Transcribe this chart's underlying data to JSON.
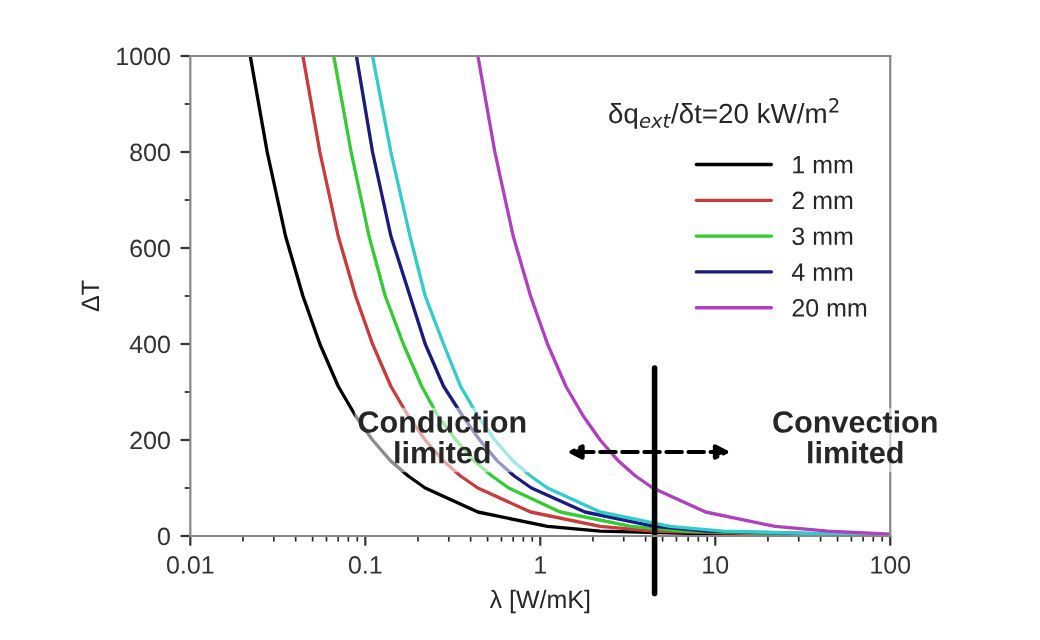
{
  "chart_data": {
    "type": "line",
    "xlabel": "λ [W/mK]",
    "ylabel": "ΔT",
    "log": "x",
    "xlim": [
      0.01,
      100
    ],
    "xticks": [
      0.01,
      0.1,
      1,
      10,
      100
    ],
    "ylim": [
      0,
      1000
    ],
    "yticks": [
      0,
      200,
      400,
      600,
      800,
      1000
    ],
    "grid": false,
    "legend": "right",
    "marker": "none",
    "line_style": "solid",
    "series": [
      {
        "name": "1 mm",
        "color": "#000000",
        "x": [
          0.022,
          0.0275,
          0.035,
          0.044,
          0.055,
          0.07,
          0.088,
          0.11,
          0.14,
          0.176,
          0.22,
          0.44,
          1.1,
          2.2,
          22,
          100
        ],
        "values": [
          1000,
          800,
          625,
          500,
          400,
          312,
          250,
          200,
          156,
          125,
          100,
          50,
          20,
          10,
          1,
          0
        ]
      },
      {
        "name": "2 mm",
        "color": "#c83c3c",
        "x": [
          0.044,
          0.055,
          0.07,
          0.088,
          0.11,
          0.14,
          0.176,
          0.22,
          0.28,
          0.35,
          0.44,
          0.88,
          2.2,
          4.4,
          44,
          100
        ],
        "values": [
          1000,
          800,
          625,
          500,
          400,
          312,
          250,
          200,
          156,
          125,
          100,
          50,
          20,
          10,
          1,
          0
        ]
      },
      {
        "name": "3 mm",
        "color": "#33cc33",
        "x": [
          0.066,
          0.083,
          0.105,
          0.13,
          0.165,
          0.21,
          0.26,
          0.33,
          0.42,
          0.53,
          0.66,
          1.3,
          3.3,
          6.6,
          66,
          100
        ],
        "values": [
          1000,
          800,
          625,
          500,
          400,
          312,
          250,
          200,
          156,
          125,
          100,
          50,
          20,
          10,
          1,
          1
        ]
      },
      {
        "name": "4 mm",
        "color": "#1a1a80",
        "x": [
          0.089,
          0.11,
          0.14,
          0.18,
          0.22,
          0.28,
          0.36,
          0.45,
          0.57,
          0.71,
          0.89,
          1.8,
          4.5,
          8.9,
          100
        ],
        "values": [
          1000,
          800,
          625,
          500,
          400,
          312,
          250,
          200,
          156,
          125,
          100,
          50,
          20,
          10,
          1
        ]
      },
      {
        "color": "#33cccc",
        "x": [
          0.11,
          0.14,
          0.18,
          0.22,
          0.28,
          0.35,
          0.44,
          0.55,
          0.7,
          0.88,
          1.1,
          2.2,
          5.5,
          11,
          100
        ],
        "values": [
          1000,
          800,
          625,
          500,
          400,
          312,
          250,
          200,
          156,
          125,
          100,
          50,
          20,
          10,
          1
        ]
      },
      {
        "name": "20 mm",
        "color": "#b040c0",
        "x": [
          0.44,
          0.55,
          0.7,
          0.88,
          1.1,
          1.4,
          1.76,
          2.2,
          2.8,
          3.5,
          4.4,
          8.8,
          22,
          44,
          100
        ],
        "values": [
          1000,
          800,
          625,
          500,
          400,
          312,
          250,
          200,
          156,
          125,
          100,
          50,
          20,
          10,
          4
        ]
      }
    ],
    "ref_lines": [
      {
        "axis": "x",
        "value": 4.5,
        "color": "#000000"
      }
    ],
    "annotations": [
      "δq$_{ext}$/δt=20 kW/m$^{2}$",
      "Conduction\nlimited",
      "Convection\nlimited"
    ]
  }
}
